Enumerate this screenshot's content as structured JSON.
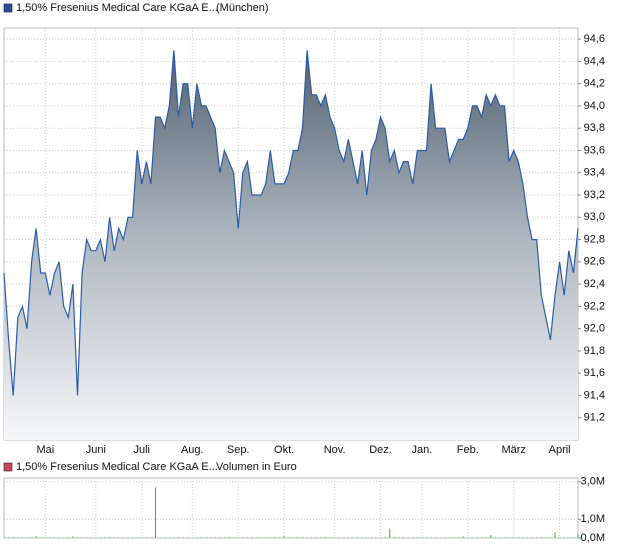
{
  "chart_data": [
    {
      "type": "line",
      "subtitle": "(München)",
      "categories": [
        null,
        null,
        null,
        null,
        null,
        null,
        null,
        null,
        null,
        "Mai",
        null,
        null,
        null,
        null,
        null,
        null,
        null,
        null,
        null,
        null,
        "Juni",
        null,
        null,
        null,
        null,
        null,
        null,
        null,
        null,
        null,
        "Juli",
        null,
        null,
        null,
        null,
        null,
        null,
        null,
        null,
        null,
        null,
        "Aug.",
        null,
        null,
        null,
        null,
        null,
        null,
        null,
        null,
        null,
        "Sep.",
        null,
        null,
        null,
        null,
        null,
        null,
        null,
        null,
        null,
        "Okt.",
        null,
        null,
        null,
        null,
        null,
        null,
        null,
        null,
        null,
        null,
        "Nov.",
        null,
        null,
        null,
        null,
        null,
        null,
        null,
        null,
        null,
        "Dez.",
        null,
        null,
        null,
        null,
        null,
        null,
        null,
        null,
        "Jan.",
        null,
        null,
        null,
        null,
        null,
        null,
        null,
        null,
        null,
        "Feb.",
        null,
        null,
        null,
        null,
        null,
        null,
        null,
        null,
        null,
        "März",
        null,
        null,
        null,
        null,
        null,
        null,
        null,
        null,
        null,
        "April",
        null,
        null,
        null,
        null
      ],
      "series": [
        {
          "name": "1,50% Fresenius Medical Care KGaA E...",
          "color": "#2b5ca8",
          "values": [
            92.5,
            91.9,
            91.4,
            92.1,
            92.2,
            92.0,
            92.6,
            92.9,
            92.5,
            92.5,
            92.3,
            92.5,
            92.6,
            92.2,
            92.1,
            92.4,
            91.4,
            92.5,
            92.8,
            92.7,
            92.7,
            92.8,
            92.6,
            93.0,
            92.7,
            92.9,
            92.8,
            93.0,
            93.0,
            93.6,
            93.3,
            93.5,
            93.3,
            93.9,
            93.9,
            93.8,
            94.0,
            94.5,
            93.9,
            94.2,
            94.2,
            93.8,
            94.2,
            94.0,
            94.0,
            93.9,
            93.8,
            93.4,
            93.6,
            93.5,
            93.4,
            92.9,
            93.4,
            93.5,
            93.2,
            93.2,
            93.2,
            93.3,
            93.6,
            93.3,
            93.3,
            93.3,
            93.4,
            93.6,
            93.6,
            93.8,
            94.5,
            94.1,
            94.1,
            94.0,
            94.1,
            93.9,
            93.8,
            93.6,
            93.5,
            93.7,
            93.5,
            93.3,
            93.6,
            93.2,
            93.6,
            93.7,
            93.9,
            93.8,
            93.5,
            93.6,
            93.4,
            93.5,
            93.5,
            93.3,
            93.6,
            93.6,
            93.6,
            94.2,
            93.8,
            93.8,
            93.8,
            93.5,
            93.6,
            93.7,
            93.7,
            93.8,
            94.0,
            94.0,
            93.9,
            94.1,
            94.0,
            94.1,
            94.0,
            94.0,
            93.5,
            93.6,
            93.5,
            93.3,
            93.0,
            92.8,
            92.8,
            92.3,
            92.1,
            91.9,
            92.3,
            92.6,
            92.3,
            92.7,
            92.5,
            92.9
          ]
        }
      ],
      "ylim": [
        91.0,
        94.7
      ],
      "yticks": [
        {
          "value": 91.2,
          "label": "91,2"
        },
        {
          "value": 91.4,
          "label": "91,4"
        },
        {
          "value": 91.6,
          "label": "91,6"
        },
        {
          "value": 91.8,
          "label": "91,8"
        },
        {
          "value": 92.0,
          "label": "92,0"
        },
        {
          "value": 92.2,
          "label": "92,2"
        },
        {
          "value": 92.4,
          "label": "92,4"
        },
        {
          "value": 92.6,
          "label": "92,6"
        },
        {
          "value": 92.8,
          "label": "92,8"
        },
        {
          "value": 93.0,
          "label": "93,0"
        },
        {
          "value": 93.2,
          "label": "93,2"
        },
        {
          "value": 93.4,
          "label": "93,4"
        },
        {
          "value": 93.6,
          "label": "93,6"
        },
        {
          "value": 93.8,
          "label": "93,8"
        },
        {
          "value": 94.0,
          "label": "94,0"
        },
        {
          "value": 94.2,
          "label": "94,2"
        },
        {
          "value": 94.4,
          "label": "94,4"
        },
        {
          "value": 94.6,
          "label": "94,6"
        }
      ],
      "grid": true
    },
    {
      "type": "bar",
      "subtitle": "Volumen in Euro",
      "series": [
        {
          "name": "1,50% Fresenius Medical Care KGaA E...",
          "color": "#2fb52f",
          "values": [
            0,
            0,
            0,
            0,
            0,
            0,
            0,
            100000,
            0,
            0,
            0,
            0,
            0,
            0,
            0,
            80000,
            0,
            0,
            0,
            0,
            0,
            0,
            0,
            0,
            0,
            0,
            0,
            0,
            0,
            0,
            0,
            0,
            0,
            2700000,
            0,
            0,
            0,
            0,
            0,
            0,
            0,
            0,
            0,
            0,
            0,
            0,
            0,
            0,
            0,
            0,
            0,
            0,
            0,
            0,
            0,
            0,
            0,
            0,
            0,
            0,
            0,
            100000,
            0,
            0,
            0,
            0,
            0,
            0,
            0,
            0,
            0,
            0,
            0,
            0,
            0,
            0,
            0,
            0,
            0,
            0,
            0,
            0,
            0,
            0,
            500000,
            0,
            0,
            0,
            0,
            0,
            0,
            0,
            0,
            0,
            0,
            0,
            0,
            0,
            0,
            0,
            80000,
            0,
            0,
            0,
            0,
            0,
            150000,
            0,
            0,
            0,
            0,
            0,
            0,
            0,
            0,
            0,
            0,
            0,
            0,
            0,
            300000,
            0,
            0,
            0,
            0,
            200000
          ]
        }
      ],
      "ylim": [
        0,
        3200000
      ],
      "yticks": [
        {
          "value": 0,
          "label": "0,0M"
        },
        {
          "value": 1000000,
          "label": "1,0M"
        },
        {
          "value": 3000000,
          "label": "3,0M"
        }
      ],
      "grid": true
    }
  ]
}
